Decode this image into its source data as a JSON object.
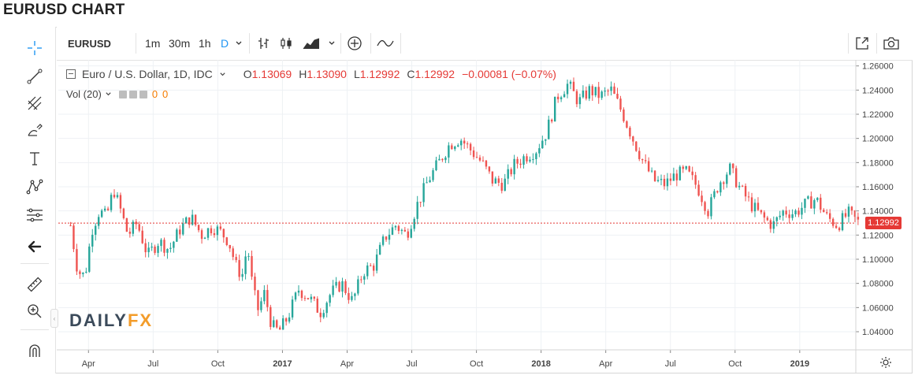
{
  "page": {
    "title": "EURUSD CHART"
  },
  "toolbar": {
    "symbol": "EURUSD",
    "intervals": [
      "1m",
      "30m",
      "1h",
      "D"
    ],
    "active_interval": "D",
    "icons": [
      "dropdown-chevron-icon",
      "bar-chart-icon",
      "candlestick-icon",
      "area-chart-icon",
      "indicators-icon",
      "add-indicator-icon",
      "compare-icon",
      "popout-icon",
      "camera-icon"
    ]
  },
  "drawing_tools": [
    "crosshair-icon",
    "trend-line-icon",
    "pitchfork-icon",
    "brush-icon",
    "text-icon",
    "pattern-icon",
    "fib-icon",
    "back-arrow-icon",
    "ruler-icon",
    "zoom-icon",
    "magnet-icon"
  ],
  "legend": {
    "name": "Euro / U.S. Dollar, 1D, IDC",
    "o_label": "O",
    "o_value": "1.13069",
    "h_label": "H",
    "h_value": "1.13090",
    "l_label": "L",
    "l_value": "1.12992",
    "c_label": "C",
    "c_value": "1.12992",
    "change": "−0.00081 (−0.07%)"
  },
  "volume_legend": {
    "label": "Vol (20)",
    "v1": "0",
    "v2": "0"
  },
  "logo": {
    "part1": "DAILY",
    "part2": "FX"
  },
  "colors": {
    "up": "#26a69a",
    "down": "#ef5350",
    "price_line": "#e53935",
    "grid": "#eef1f4",
    "brand_orange": "#f39c2a"
  },
  "chart_data": {
    "type": "candlestick",
    "title": "EURUSD CHART",
    "symbol": "Euro / U.S. Dollar",
    "interval": "1D",
    "ylim": [
      1.025,
      1.265
    ],
    "y_ticks": [
      "1.26000",
      "1.24000",
      "1.22000",
      "1.20000",
      "1.18000",
      "1.16000",
      "1.14000",
      "1.12000",
      "1.10000",
      "1.08000",
      "1.06000",
      "1.04000"
    ],
    "x_ticks": [
      "Apr",
      "Jul",
      "Oct",
      "2017",
      "Apr",
      "Jul",
      "Oct",
      "2018",
      "Apr",
      "Jul",
      "Oct",
      "2019"
    ],
    "last_price": "1.12992",
    "path": [
      [
        "2016-03",
        1.128
      ],
      [
        "2016-03",
        1.09
      ],
      [
        "2016-03",
        1.086
      ],
      [
        "2016-04",
        1.125
      ],
      [
        "2016-04",
        1.14
      ],
      [
        "2016-04",
        1.135
      ],
      [
        "2016-05",
        1.158
      ],
      [
        "2016-05",
        1.14
      ],
      [
        "2016-05",
        1.12
      ],
      [
        "2016-06",
        1.13
      ],
      [
        "2016-06",
        1.103
      ],
      [
        "2016-07",
        1.115
      ],
      [
        "2016-07",
        1.108
      ],
      [
        "2016-08",
        1.125
      ],
      [
        "2016-08",
        1.135
      ],
      [
        "2016-09",
        1.12
      ],
      [
        "2016-09",
        1.127
      ],
      [
        "2016-10",
        1.122
      ],
      [
        "2016-10",
        1.115
      ],
      [
        "2016-10",
        1.095
      ],
      [
        "2016-11",
        1.086
      ],
      [
        "2016-11",
        1.112
      ],
      [
        "2016-11",
        1.075
      ],
      [
        "2016-11",
        1.058
      ],
      [
        "2016-12",
        1.072
      ],
      [
        "2016-12",
        1.045
      ],
      [
        "2016-12",
        1.04
      ],
      [
        "2017-01",
        1.052
      ],
      [
        "2017-01",
        1.075
      ],
      [
        "2017-02",
        1.068
      ],
      [
        "2017-02",
        1.056
      ],
      [
        "2017-03",
        1.072
      ],
      [
        "2017-03",
        1.08
      ],
      [
        "2017-04",
        1.065
      ],
      [
        "2017-04",
        1.09
      ],
      [
        "2017-05",
        1.095
      ],
      [
        "2017-05",
        1.118
      ],
      [
        "2017-06",
        1.128
      ],
      [
        "2017-06",
        1.12
      ],
      [
        "2017-07",
        1.145
      ],
      [
        "2017-07",
        1.165
      ],
      [
        "2017-08",
        1.18
      ],
      [
        "2017-08",
        1.195
      ],
      [
        "2017-09",
        1.2
      ],
      [
        "2017-09",
        1.19
      ],
      [
        "2017-10",
        1.18
      ],
      [
        "2017-10",
        1.165
      ],
      [
        "2017-11",
        1.162
      ],
      [
        "2017-11",
        1.178
      ],
      [
        "2017-12",
        1.185
      ],
      [
        "2017-12",
        1.19
      ],
      [
        "2018-01",
        1.205
      ],
      [
        "2018-01",
        1.235
      ],
      [
        "2018-02",
        1.245
      ],
      [
        "2018-02",
        1.23
      ],
      [
        "2018-03",
        1.24
      ],
      [
        "2018-03",
        1.235
      ],
      [
        "2018-04",
        1.24
      ],
      [
        "2018-04",
        1.222
      ],
      [
        "2018-05",
        1.2
      ],
      [
        "2018-05",
        1.18
      ],
      [
        "2018-06",
        1.165
      ],
      [
        "2018-06",
        1.162
      ],
      [
        "2018-07",
        1.17
      ],
      [
        "2018-07",
        1.172
      ],
      [
        "2018-08",
        1.16
      ],
      [
        "2018-08",
        1.14
      ],
      [
        "2018-09",
        1.163
      ],
      [
        "2018-09",
        1.175
      ],
      [
        "2018-10",
        1.158
      ],
      [
        "2018-10",
        1.145
      ],
      [
        "2018-11",
        1.135
      ],
      [
        "2018-11",
        1.128
      ],
      [
        "2018-12",
        1.14
      ],
      [
        "2018-12",
        1.138
      ],
      [
        "2019-01",
        1.145
      ],
      [
        "2019-01",
        1.15
      ],
      [
        "2019-02",
        1.135
      ],
      [
        "2019-02",
        1.128
      ],
      [
        "2019-03",
        1.138
      ],
      [
        "2019-03",
        1.13
      ]
    ]
  }
}
